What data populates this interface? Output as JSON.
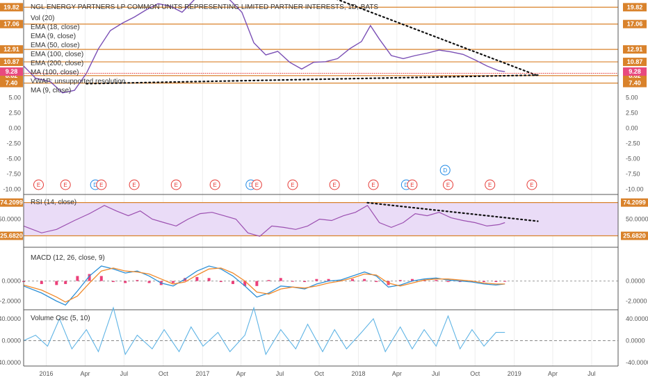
{
  "colors": {
    "orange_line": "#d9822b",
    "pink_label": "#e84a7f",
    "rsi_line": "#9b4fb0",
    "rsi_band": "#eadcf7",
    "macd_line": "#2b8fd6",
    "signal_line": "#f0892a",
    "hist_pos": "#e91e63",
    "vosc_line": "#5fb4e5",
    "trend_dotted": "#111111",
    "red_dotted": "#e53935",
    "earnings_badge": "#e53935",
    "dividend_badge": "#1e88e5"
  },
  "chart_data": [
    {
      "type": "line",
      "pane": "price",
      "title": "NGL ENERGY PARTNERS LP COMMON UNITS REPRESENTING LIMITED PARTNER INTERESTS, 1D, BATS",
      "legend": [
        "Vol (20)",
        "EMA (18, close)",
        "EMA (9, close)",
        "EMA (50, close)",
        "EMA (100, close)",
        "EMA (200, close)",
        "MA (100, close)",
        "VWAP: unsupported resolution",
        "MA (9, close)"
      ],
      "x_ticks": [
        "2016",
        "Apr",
        "Jul",
        "Oct",
        "2017",
        "Apr",
        "Jul",
        "Oct",
        "2018",
        "Apr",
        "Jul",
        "Oct",
        "2019",
        "Apr",
        "Jul"
      ],
      "x_domain": [
        "2015-11-09",
        "2019-09-01"
      ],
      "ylim": [
        -10.5,
        21
      ],
      "y_ticks_left": [
        "5.00",
        "2.50",
        "0.00",
        "-2.50",
        "-5.00",
        "-7.50",
        "-10.00"
      ],
      "y_ticks_right": [
        "5.00",
        "2.50",
        "0.00",
        "-2.50",
        "-5.00",
        "-7.50",
        "-10.00"
      ],
      "level_labels": [
        "19.82",
        "17.06",
        "12.91",
        "10.87",
        "8.62",
        "7.40"
      ],
      "last_price": "9.28",
      "price_points": [
        [
          "2015-11-09",
          10.2
        ],
        [
          "2015-12-07",
          8.2
        ],
        [
          "2016-01-11",
          7.6
        ],
        [
          "2016-02-08",
          5.8
        ],
        [
          "2016-03-07",
          6.2
        ],
        [
          "2016-04-04",
          9.0
        ],
        [
          "2016-05-02",
          13.0
        ],
        [
          "2016-05-30",
          16.0
        ],
        [
          "2016-06-27",
          17.2
        ],
        [
          "2016-07-25",
          18.2
        ],
        [
          "2016-08-22",
          19.4
        ],
        [
          "2016-09-19",
          20.4
        ],
        [
          "2016-10-17",
          20.0
        ],
        [
          "2016-11-14",
          19.0
        ],
        [
          "2016-12-12",
          21.0
        ],
        [
          "2017-01-09",
          22.5
        ],
        [
          "2017-02-06",
          22.0
        ],
        [
          "2017-03-06",
          21.0
        ],
        [
          "2017-04-03",
          19.0
        ],
        [
          "2017-05-01",
          14.0
        ],
        [
          "2017-05-29",
          12.0
        ],
        [
          "2017-06-26",
          12.6
        ],
        [
          "2017-07-24",
          10.8
        ],
        [
          "2017-08-21",
          9.7
        ],
        [
          "2017-09-18",
          10.8
        ],
        [
          "2017-10-16",
          10.9
        ],
        [
          "2017-11-13",
          11.4
        ],
        [
          "2017-12-11",
          13.0
        ],
        [
          "2018-01-08",
          14.2
        ],
        [
          "2018-01-29",
          16.8
        ],
        [
          "2018-02-19",
          14.6
        ],
        [
          "2018-03-19",
          11.9
        ],
        [
          "2018-04-16",
          11.4
        ],
        [
          "2018-05-14",
          11.9
        ],
        [
          "2018-06-11",
          12.3
        ],
        [
          "2018-07-09",
          12.8
        ],
        [
          "2018-08-06",
          12.5
        ],
        [
          "2018-09-03",
          12.1
        ],
        [
          "2018-10-01",
          11.2
        ],
        [
          "2018-10-29",
          10.2
        ],
        [
          "2018-11-26",
          9.4
        ],
        [
          "2018-12-10",
          9.28
        ]
      ],
      "trendlines": [
        {
          "style": "dotted-black",
          "from": [
            "2017-06-26",
            24.8
          ],
          "to": [
            "2019-02-25",
            8.6
          ]
        },
        {
          "style": "dotted-black",
          "from": [
            "2016-04-04",
            7.3
          ],
          "to": [
            "2019-02-25",
            8.7
          ]
        },
        {
          "style": "dotted-red",
          "from": [
            "2015-11-09",
            9.0
          ],
          "to": [
            "2019-09-01",
            9.0
          ]
        }
      ],
      "events": [
        {
          "label": "E",
          "date": "2015-12-14"
        },
        {
          "label": "E",
          "date": "2016-02-15"
        },
        {
          "label": "D",
          "date": "2016-04-25"
        },
        {
          "label": "E",
          "date": "2016-05-09"
        },
        {
          "label": "E",
          "date": "2016-07-25"
        },
        {
          "label": "E",
          "date": "2016-10-31"
        },
        {
          "label": "E",
          "date": "2017-01-30"
        },
        {
          "label": "D",
          "date": "2017-04-24"
        },
        {
          "label": "E",
          "date": "2017-05-08"
        },
        {
          "label": "E",
          "date": "2017-07-31"
        },
        {
          "label": "E",
          "date": "2017-11-06"
        },
        {
          "label": "E",
          "date": "2018-02-05"
        },
        {
          "label": "D",
          "date": "2018-04-23"
        },
        {
          "label": "E",
          "date": "2018-05-07"
        },
        {
          "label": "D",
          "date": "2018-07-23"
        },
        {
          "label": "E",
          "date": "2018-07-30"
        },
        {
          "label": "E",
          "date": "2018-11-05"
        },
        {
          "label": "E",
          "date": "2019-02-11"
        }
      ]
    },
    {
      "type": "line",
      "pane": "rsi",
      "legend": "RSI (14, close)",
      "ylim": [
        10,
        85
      ],
      "y_ticks": [
        "50.0000"
      ],
      "band_labels": [
        "74.2099",
        "25.6820"
      ],
      "points": [
        [
          "2015-11-09",
          40
        ],
        [
          "2015-12-21",
          30
        ],
        [
          "2016-01-25",
          35
        ],
        [
          "2016-03-07",
          48
        ],
        [
          "2016-04-11",
          58
        ],
        [
          "2016-05-16",
          70
        ],
        [
          "2016-06-13",
          62
        ],
        [
          "2016-07-11",
          55
        ],
        [
          "2016-08-08",
          62
        ],
        [
          "2016-09-05",
          50
        ],
        [
          "2016-10-03",
          45
        ],
        [
          "2016-10-31",
          40
        ],
        [
          "2016-11-28",
          50
        ],
        [
          "2016-12-26",
          58
        ],
        [
          "2017-01-23",
          60
        ],
        [
          "2017-02-20",
          55
        ],
        [
          "2017-03-20",
          50
        ],
        [
          "2017-04-17",
          30
        ],
        [
          "2017-05-15",
          25
        ],
        [
          "2017-06-12",
          40
        ],
        [
          "2017-07-10",
          38
        ],
        [
          "2017-08-07",
          35
        ],
        [
          "2017-09-04",
          40
        ],
        [
          "2017-10-02",
          50
        ],
        [
          "2017-10-30",
          48
        ],
        [
          "2017-11-27",
          55
        ],
        [
          "2017-12-25",
          60
        ],
        [
          "2018-01-22",
          70
        ],
        [
          "2018-02-19",
          45
        ],
        [
          "2018-03-19",
          38
        ],
        [
          "2018-04-16",
          45
        ],
        [
          "2018-05-14",
          58
        ],
        [
          "2018-06-11",
          55
        ],
        [
          "2018-07-09",
          60
        ],
        [
          "2018-08-06",
          52
        ],
        [
          "2018-09-03",
          48
        ],
        [
          "2018-10-01",
          45
        ],
        [
          "2018-10-29",
          40
        ],
        [
          "2018-11-26",
          42
        ],
        [
          "2018-12-10",
          45
        ]
      ],
      "trendline": {
        "from": [
          "2018-01-22",
          74
        ],
        "to": [
          "2019-02-25",
          47
        ]
      }
    },
    {
      "type": "line",
      "pane": "macd",
      "legend": "MACD (12, 26, close, 9)",
      "ylim": [
        -2.8,
        3.3
      ],
      "y_ticks": [
        "0.0000",
        "-2.0000"
      ],
      "series": [
        {
          "name": "MACD",
          "points": [
            [
              "2015-11-09",
              -0.5
            ],
            [
              "2015-12-21",
              -1.2
            ],
            [
              "2016-01-25",
              -2.0
            ],
            [
              "2016-02-15",
              -2.4
            ],
            [
              "2016-03-14",
              -1.0
            ],
            [
              "2016-04-11",
              0.5
            ],
            [
              "2016-05-09",
              1.5
            ],
            [
              "2016-06-06",
              1.2
            ],
            [
              "2016-07-04",
              0.8
            ],
            [
              "2016-08-01",
              1.0
            ],
            [
              "2016-08-29",
              0.5
            ],
            [
              "2016-09-26",
              -0.2
            ],
            [
              "2016-10-24",
              -0.5
            ],
            [
              "2016-11-21",
              0.2
            ],
            [
              "2016-12-19",
              1.0
            ],
            [
              "2017-01-16",
              1.5
            ],
            [
              "2017-02-13",
              1.2
            ],
            [
              "2017-03-13",
              0.5
            ],
            [
              "2017-04-10",
              -0.5
            ],
            [
              "2017-05-08",
              -1.6
            ],
            [
              "2017-06-05",
              -1.2
            ],
            [
              "2017-07-03",
              -0.5
            ],
            [
              "2017-07-31",
              -0.6
            ],
            [
              "2017-08-28",
              -0.8
            ],
            [
              "2017-09-25",
              -0.3
            ],
            [
              "2017-10-23",
              0.0
            ],
            [
              "2017-11-20",
              0.1
            ],
            [
              "2017-12-18",
              0.5
            ],
            [
              "2018-01-15",
              0.9
            ],
            [
              "2018-02-12",
              0.5
            ],
            [
              "2018-03-12",
              -0.6
            ],
            [
              "2018-04-09",
              -0.4
            ],
            [
              "2018-05-07",
              0.0
            ],
            [
              "2018-06-04",
              0.2
            ],
            [
              "2018-07-02",
              0.3
            ],
            [
              "2018-07-30",
              0.1
            ],
            [
              "2018-08-27",
              0.0
            ],
            [
              "2018-09-24",
              -0.1
            ],
            [
              "2018-10-22",
              -0.3
            ],
            [
              "2018-11-19",
              -0.4
            ],
            [
              "2018-12-10",
              -0.3
            ]
          ]
        },
        {
          "name": "Signal",
          "points": [
            [
              "2015-11-09",
              -0.4
            ],
            [
              "2015-12-21",
              -0.9
            ],
            [
              "2016-01-25",
              -1.6
            ],
            [
              "2016-02-15",
              -2.1
            ],
            [
              "2016-03-14",
              -1.5
            ],
            [
              "2016-04-11",
              -0.2
            ],
            [
              "2016-05-09",
              1.0
            ],
            [
              "2016-06-06",
              1.3
            ],
            [
              "2016-07-04",
              1.0
            ],
            [
              "2016-08-01",
              0.9
            ],
            [
              "2016-08-29",
              0.7
            ],
            [
              "2016-09-26",
              0.2
            ],
            [
              "2016-10-24",
              -0.3
            ],
            [
              "2016-11-21",
              -0.1
            ],
            [
              "2016-12-19",
              0.6
            ],
            [
              "2017-01-16",
              1.2
            ],
            [
              "2017-02-13",
              1.3
            ],
            [
              "2017-03-13",
              0.8
            ],
            [
              "2017-04-10",
              0.0
            ],
            [
              "2017-05-08",
              -1.1
            ],
            [
              "2017-06-05",
              -1.3
            ],
            [
              "2017-07-03",
              -0.8
            ],
            [
              "2017-07-31",
              -0.6
            ],
            [
              "2017-08-28",
              -0.7
            ],
            [
              "2017-09-25",
              -0.5
            ],
            [
              "2017-10-23",
              -0.2
            ],
            [
              "2017-11-20",
              0.0
            ],
            [
              "2017-12-18",
              0.3
            ],
            [
              "2018-01-15",
              0.7
            ],
            [
              "2018-02-12",
              0.6
            ],
            [
              "2018-03-12",
              -0.2
            ],
            [
              "2018-04-09",
              -0.5
            ],
            [
              "2018-05-07",
              -0.2
            ],
            [
              "2018-06-04",
              0.1
            ],
            [
              "2018-07-02",
              0.2
            ],
            [
              "2018-07-30",
              0.2
            ],
            [
              "2018-08-27",
              0.1
            ],
            [
              "2018-09-24",
              0.0
            ],
            [
              "2018-10-22",
              -0.2
            ],
            [
              "2018-11-19",
              -0.3
            ],
            [
              "2018-12-10",
              -0.3
            ]
          ]
        }
      ]
    },
    {
      "type": "line",
      "pane": "volume_osc",
      "legend": "Volume Osc (5, 10)",
      "ylim": [
        -45,
        55
      ],
      "y_ticks": [
        "40.0000",
        "0.0000",
        "-40.0000"
      ],
      "points": [
        [
          "2015-11-09",
          0
        ],
        [
          "2015-12-07",
          10
        ],
        [
          "2016-01-04",
          -10
        ],
        [
          "2016-02-01",
          40
        ],
        [
          "2016-03-01",
          -15
        ],
        [
          "2016-04-04",
          20
        ],
        [
          "2016-05-02",
          -20
        ],
        [
          "2016-06-06",
          60
        ],
        [
          "2016-07-04",
          -25
        ],
        [
          "2016-08-01",
          10
        ],
        [
          "2016-09-05",
          -15
        ],
        [
          "2016-10-03",
          20
        ],
        [
          "2016-11-07",
          -20
        ],
        [
          "2016-12-05",
          25
        ],
        [
          "2017-01-02",
          -10
        ],
        [
          "2017-02-06",
          15
        ],
        [
          "2017-03-06",
          -20
        ],
        [
          "2017-04-10",
          10
        ],
        [
          "2017-05-01",
          60
        ],
        [
          "2017-05-29",
          -25
        ],
        [
          "2017-07-03",
          20
        ],
        [
          "2017-08-07",
          -15
        ],
        [
          "2017-09-04",
          30
        ],
        [
          "2017-10-09",
          -20
        ],
        [
          "2017-11-06",
          20
        ],
        [
          "2017-12-04",
          -15
        ],
        [
          "2018-01-08",
          15
        ],
        [
          "2018-02-05",
          40
        ],
        [
          "2018-03-05",
          -20
        ],
        [
          "2018-04-09",
          25
        ],
        [
          "2018-05-07",
          -15
        ],
        [
          "2018-06-04",
          20
        ],
        [
          "2018-07-02",
          -10
        ],
        [
          "2018-07-30",
          45
        ],
        [
          "2018-08-27",
          -15
        ],
        [
          "2018-09-24",
          20
        ],
        [
          "2018-10-22",
          -10
        ],
        [
          "2018-11-19",
          15
        ],
        [
          "2018-12-10",
          15
        ]
      ]
    }
  ]
}
